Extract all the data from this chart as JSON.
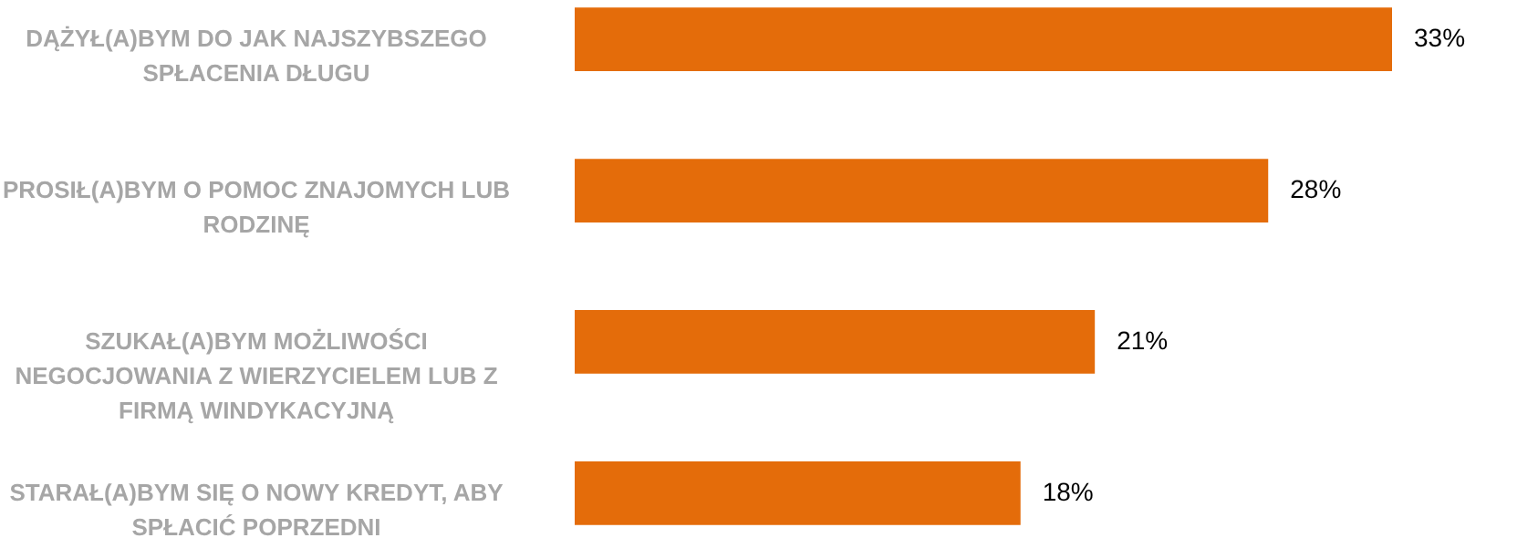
{
  "chart_data": {
    "type": "bar",
    "orientation": "horizontal",
    "categories": [
      "DĄŻYŁ(A)BYM DO JAK NAJSZYBSZEGO SPŁACENIA DŁUGU",
      "PROSIŁ(A)BYM O POMOC ZNAJOMYCH LUB RODZINĘ",
      "SZUKAŁ(A)BYM MOŻLIWOŚCI NEGOCJOWANIA Z WIERZYCIELEM LUB Z FIRMĄ WINDYKACYJNĄ",
      "STARAŁ(A)BYM SIĘ O NOWY KREDYT, ABY SPŁACIĆ POPRZEDNI"
    ],
    "values": [
      33,
      28,
      21,
      18
    ],
    "value_labels": [
      "33%",
      "28%",
      "21%",
      "18%"
    ],
    "color": "#e46c0a"
  }
}
